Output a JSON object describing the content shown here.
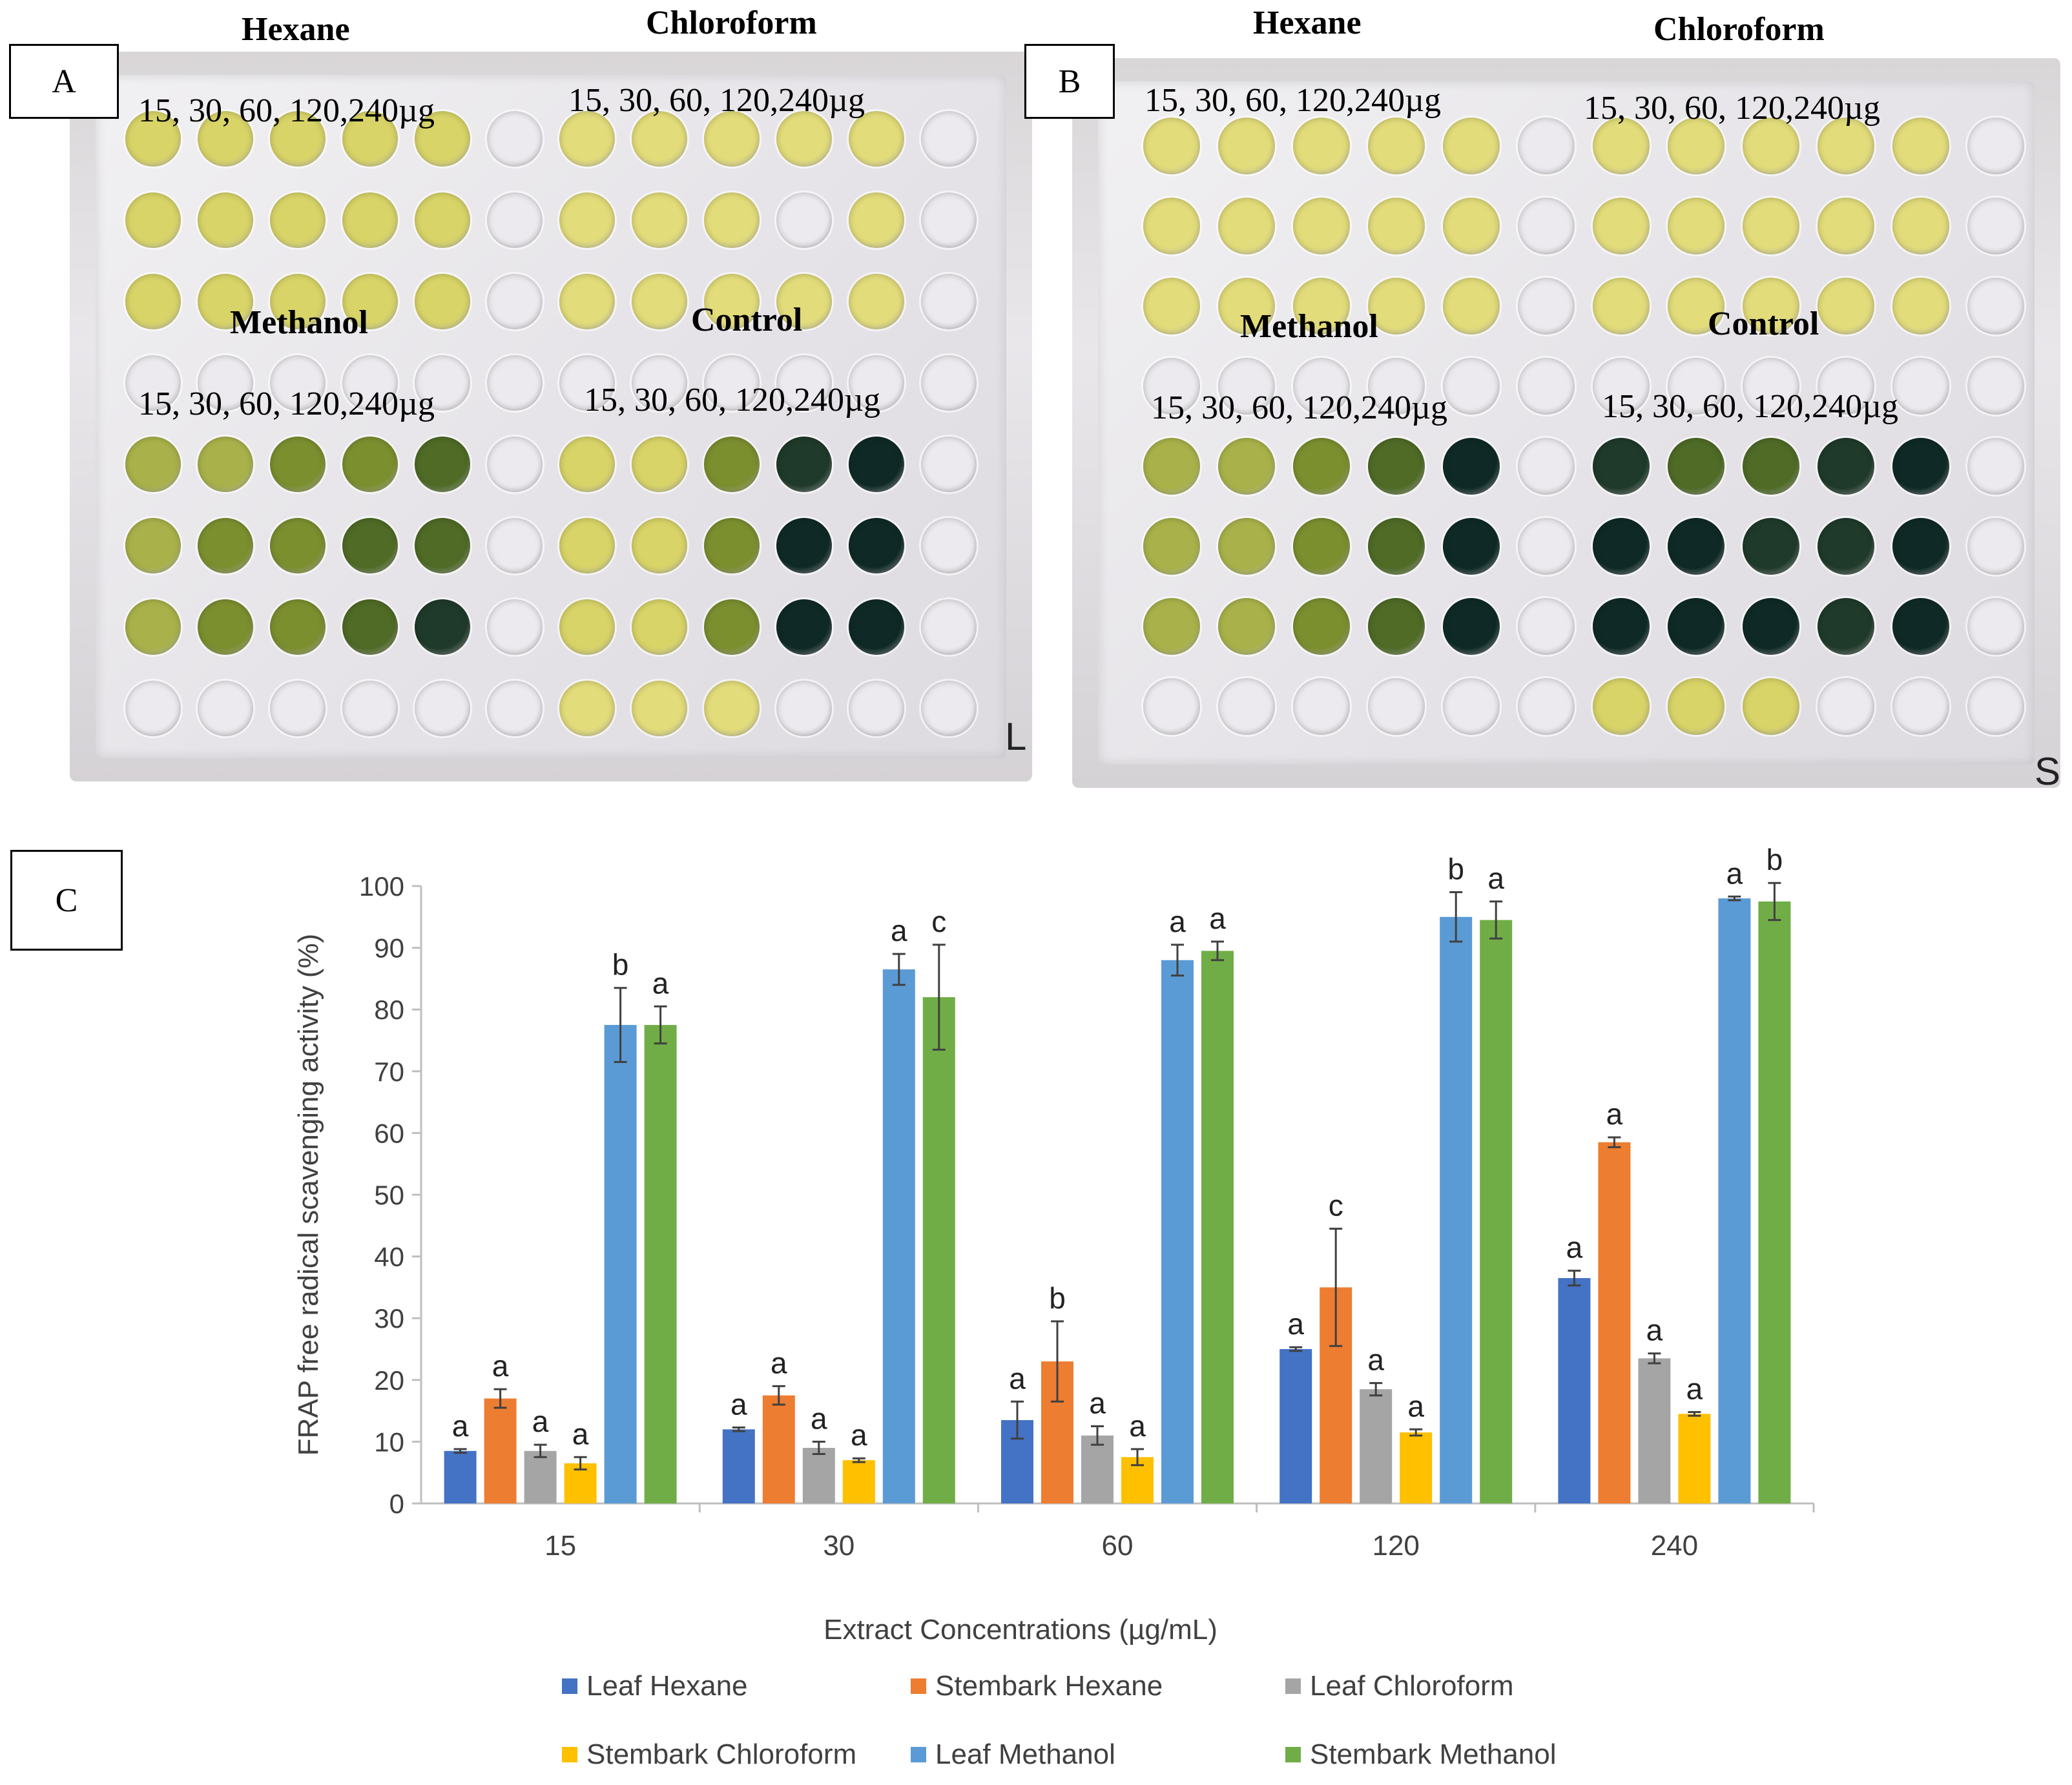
{
  "panel_a": {
    "label": "A",
    "top_left_solvent": "Hexane",
    "top_right_solvent": "Chloroform",
    "bottom_left_solvent": "Methanol",
    "bottom_right_solvent": "Control",
    "conc_top_left": "15, 30, 60, 120,240µg",
    "conc_top_right": "15, 30, 60, 120,240µg",
    "conc_bottom_left": "15, 30, 60, 120,240µg",
    "conc_bottom_right": "15, 30, 60, 120,240µg",
    "corner_mark": "L"
  },
  "panel_b": {
    "label": "B",
    "top_left_solvent": "Hexane",
    "top_right_solvent": "Chloroform",
    "bottom_left_solvent": "Methanol",
    "bottom_right_solvent": "Control",
    "conc_top_left": "15, 30, 60, 120,240µg",
    "conc_top_right": "15, 30, 60, 120,240µg",
    "conc_bottom_left": "15, 30, 60, 120,240µg",
    "conc_bottom_right": "15, 30, 60, 120,240µg",
    "corner_mark": "S"
  },
  "panel_c": {
    "label": "C"
  },
  "colors": {
    "leaf_hexane": "#4472C4",
    "stembark_hexane": "#ED7D31",
    "leaf_chloroform": "#A5A5A5",
    "stembark_chloroform": "#FFC000",
    "leaf_methanol": "#5B9BD5",
    "stembark_methanol": "#70AD47"
  },
  "chart_data": {
    "type": "bar",
    "title": "",
    "xlabel": "Extract Concentrations (µg/mL)",
    "ylabel": "FRAP free radical scavenging activity (%)",
    "ylim": [
      0,
      100
    ],
    "yticks": [
      0,
      10,
      20,
      30,
      40,
      50,
      60,
      70,
      80,
      90,
      100
    ],
    "categories": [
      "15",
      "30",
      "60",
      "120",
      "240"
    ],
    "legend_position": "bottom",
    "series": [
      {
        "name": "Leaf Hexane",
        "color": "#4472C4",
        "values": [
          8.5,
          12,
          13.5,
          25,
          36.5
        ],
        "errors": [
          0.3,
          0.3,
          3,
          0.3,
          1.2
        ],
        "letters": [
          "a",
          "a",
          "a",
          "a",
          "a"
        ]
      },
      {
        "name": "Stembark Hexane",
        "color": "#ED7D31",
        "values": [
          17,
          17.5,
          23,
          35,
          58.5
        ],
        "errors": [
          1.5,
          1.5,
          6.5,
          9.5,
          0.8
        ],
        "letters": [
          "a",
          "a",
          "b",
          "c",
          "a"
        ]
      },
      {
        "name": "Leaf Chloroform",
        "color": "#A5A5A5",
        "values": [
          8.5,
          9,
          11,
          18.5,
          23.5
        ],
        "errors": [
          1,
          1,
          1.5,
          1,
          0.8
        ],
        "letters": [
          "a",
          "a",
          "a",
          "a",
          "a"
        ]
      },
      {
        "name": "Stembark Chloroform",
        "color": "#FFC000",
        "values": [
          6.5,
          7,
          7.5,
          11.5,
          14.5
        ],
        "errors": [
          1,
          0.3,
          1.3,
          0.5,
          0.3
        ],
        "letters": [
          "a",
          "a",
          "a",
          "a",
          "a"
        ]
      },
      {
        "name": "Leaf Methanol",
        "color": "#5B9BD5",
        "values": [
          77.5,
          86.5,
          88,
          95,
          98
        ],
        "errors": [
          6,
          2.5,
          2.5,
          4,
          0.3
        ],
        "letters": [
          "b",
          "a",
          "a",
          "b",
          "a"
        ]
      },
      {
        "name": "Stembark Methanol",
        "color": "#70AD47",
        "values": [
          77.5,
          82,
          89.5,
          94.5,
          97.5
        ],
        "errors": [
          3,
          8.5,
          1.5,
          3,
          3
        ],
        "letters": [
          "a",
          "c",
          "a",
          "a",
          "b"
        ]
      }
    ]
  }
}
